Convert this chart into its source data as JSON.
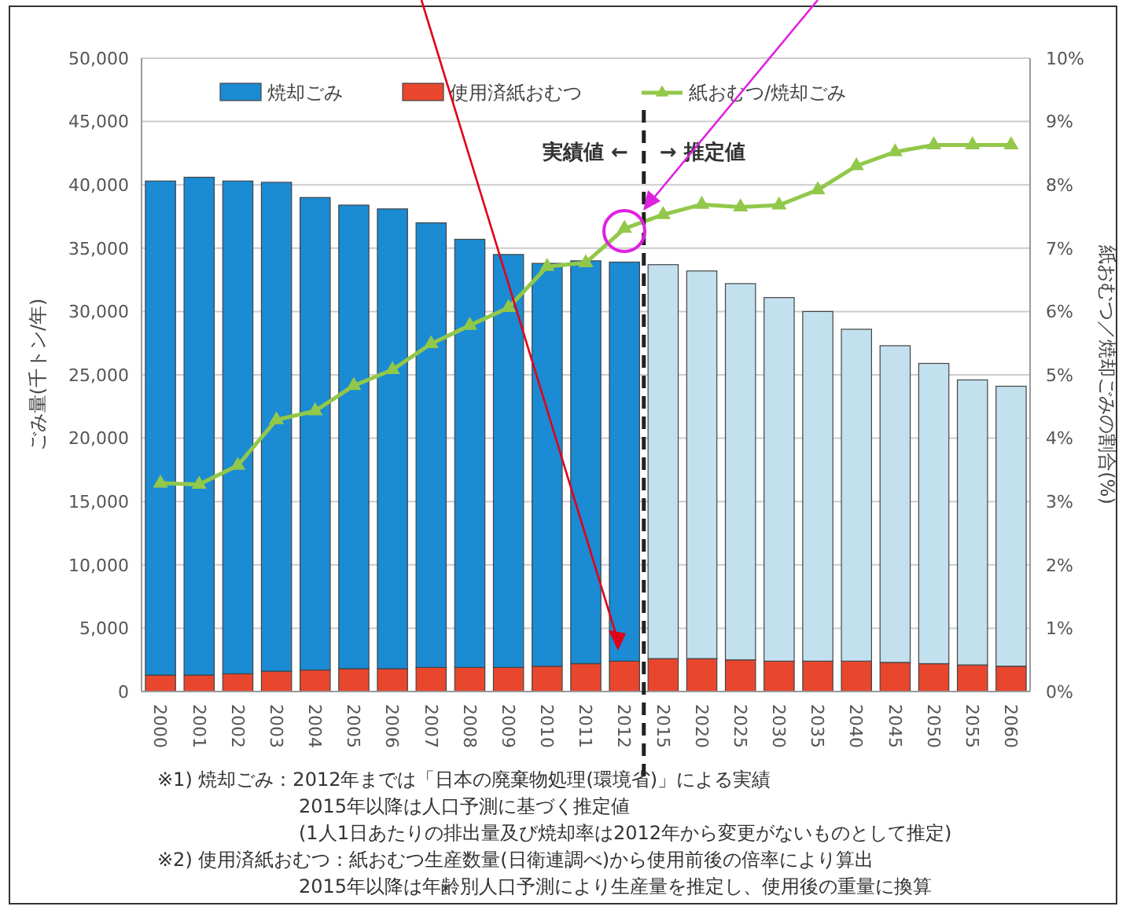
{
  "chart_data": {
    "type": "bar",
    "stacked": true,
    "ylabel": "ごみ量(千トン/年)",
    "y2label": "紙おむつ／焼却ごみの割合(%)",
    "categories": [
      "2000",
      "2001",
      "2002",
      "2003",
      "2004",
      "2005",
      "2006",
      "2007",
      "2008",
      "2009",
      "2010",
      "2011",
      "2012",
      "2015",
      "2020",
      "2025",
      "2030",
      "2035",
      "2040",
      "2045",
      "2050",
      "2055",
      "2060"
    ],
    "series": [
      {
        "name": "使用済紙おむつ",
        "color": "#e8472e",
        "values": [
          1300,
          1300,
          1400,
          1600,
          1700,
          1800,
          1800,
          1900,
          1900,
          1900,
          2000,
          2200,
          2400,
          2600,
          2600,
          2500,
          2400,
          2400,
          2400,
          2300,
          2200,
          2100,
          2000
        ]
      },
      {
        "name": "焼却ごみ",
        "color": "#1b8bd3",
        "colors": [
          "#1b8bd3",
          "#1b8bd3",
          "#1b8bd3",
          "#1b8bd3",
          "#1b8bd3",
          "#1b8bd3",
          "#1b8bd3",
          "#1b8bd3",
          "#1b8bd3",
          "#1b8bd3",
          "#1b8bd3",
          "#1b8bd3",
          "#1b8bd3",
          "#c2e0ee",
          "#c2e0ee",
          "#c2e0ee",
          "#c2e0ee",
          "#c2e0ee",
          "#c2e0ee",
          "#c2e0ee",
          "#c2e0ee",
          "#c2e0ee",
          "#c2e0ee"
        ],
        "values": [
          39000,
          39300,
          38900,
          38600,
          37300,
          36600,
          36300,
          35100,
          33800,
          32600,
          31800,
          31800,
          31500,
          31100,
          30600,
          29700,
          28700,
          27600,
          26200,
          25000,
          23700,
          22500,
          22100
        ]
      },
      {
        "name": "紙おむつ/焼却ごみ",
        "type": "line",
        "axis": "y2",
        "color": "#92c84a",
        "marker": "triangle",
        "values": [
          3.29,
          3.27,
          3.57,
          4.29,
          4.43,
          4.83,
          5.08,
          5.49,
          5.78,
          6.06,
          6.71,
          6.77,
          7.31,
          7.53,
          7.69,
          7.65,
          7.68,
          7.92,
          8.3,
          8.52,
          8.63,
          8.63,
          8.63
        ]
      }
    ],
    "ylim": [
      0,
      50000
    ],
    "yticks": [
      {
        "value": 0,
        "label": "0"
      },
      {
        "value": 5000,
        "label": "5,000"
      },
      {
        "value": 10000,
        "label": "10,000"
      },
      {
        "value": 15000,
        "label": "15,000"
      },
      {
        "value": 20000,
        "label": "20,000"
      },
      {
        "value": 25000,
        "label": "25,000"
      },
      {
        "value": 30000,
        "label": "30,000"
      },
      {
        "value": 35000,
        "label": "35,000"
      },
      {
        "value": 40000,
        "label": "40,000"
      },
      {
        "value": 45000,
        "label": "45,000"
      },
      {
        "value": 50000,
        "label": "50,000"
      }
    ],
    "y2lim": [
      0,
      10
    ],
    "y2ticks": [
      {
        "value": 0,
        "label": "0%"
      },
      {
        "value": 1,
        "label": "1%"
      },
      {
        "value": 2,
        "label": "2%"
      },
      {
        "value": 3,
        "label": "3%"
      },
      {
        "value": 4,
        "label": "4%"
      },
      {
        "value": 5,
        "label": "5%"
      },
      {
        "value": 6,
        "label": "6%"
      },
      {
        "value": 7,
        "label": "7%"
      },
      {
        "value": 8,
        "label": "8%"
      },
      {
        "value": 9,
        "label": "9%"
      },
      {
        "value": 10,
        "label": "10%"
      }
    ],
    "grid": "y",
    "legend": "top",
    "ref_lines": [
      {
        "axis": "x",
        "value": "2012",
        "color": "#222222",
        "line_style": "dashed"
      }
    ],
    "annotations": [
      "実績値 ←",
      "→ 推定値",
      "※1) 焼却ごみ：2012年までは「日本の廃棄物処理(環境省)」による実績",
      "2015年以降は人口予測に基づく推定値",
      "(1人1日あたりの排出量及び焼却率は2012年から変更がないものとして推定)",
      "※2) 使用済紙おむつ：紙おむつ生産数量(日衛連調べ)から使用前後の倍率により算出",
      "2015年以降は年齢別人口予測により生産量を推定し、使用後の重量に換算"
    ]
  }
}
